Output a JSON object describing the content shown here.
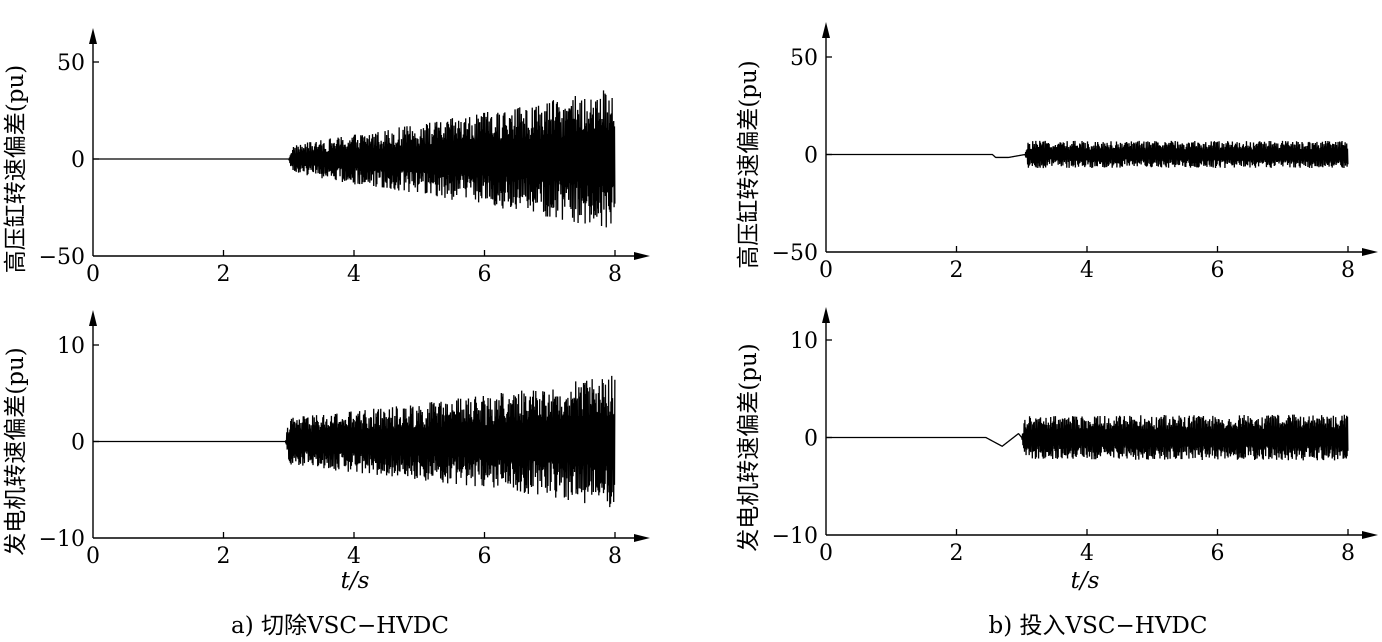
{
  "panels": {
    "a": {
      "caption": "a) 切除VSC−HVDC",
      "xlabel": "t/s"
    },
    "b": {
      "caption": "b) 投入VSC−HVDC",
      "xlabel": "t/s"
    }
  },
  "chart_data": [
    {
      "type": "line",
      "panel": "a",
      "ylabel": "高压缸转速偏差(pu)",
      "xlabel": "t/s",
      "xlim": [
        0,
        8
      ],
      "ylim": [
        -50,
        50
      ],
      "xticks": [
        0,
        2,
        4,
        6,
        8
      ],
      "yticks": [
        -50,
        0,
        50
      ],
      "series": [
        {
          "x": [
            0,
            3.0,
            3.05,
            4,
            5,
            6,
            7,
            8
          ],
          "amplitude": [
            0,
            0,
            7,
            13,
            18,
            24,
            30,
            37
          ],
          "offset": 0
        }
      ]
    },
    {
      "type": "line",
      "panel": "a",
      "ylabel": "发电机转速偏差(pu)",
      "xlabel": "t/s",
      "xlim": [
        0,
        8
      ],
      "ylim": [
        -10,
        10
      ],
      "xticks": [
        0,
        2,
        4,
        6,
        8
      ],
      "yticks": [
        -10,
        0,
        10
      ],
      "series": [
        {
          "x": [
            0,
            2.95,
            3.0,
            4,
            5,
            6,
            7,
            8
          ],
          "amplitude": [
            0,
            0,
            2.5,
            3.2,
            4.0,
            4.8,
            5.8,
            7.0
          ],
          "offset": 0
        }
      ]
    },
    {
      "type": "line",
      "panel": "b",
      "ylabel": "高压缸转速偏差(pu)",
      "xlabel": "t/s",
      "xlim": [
        0,
        8
      ],
      "ylim": [
        -50,
        50
      ],
      "xticks": [
        0,
        2,
        4,
        6,
        8
      ],
      "yticks": [
        -50,
        0,
        50
      ],
      "series": [
        {
          "x": [
            0,
            2.55,
            2.6,
            2.8,
            3.05,
            3.1,
            5,
            8
          ],
          "amplitude": [
            0,
            0,
            0,
            0,
            0,
            7,
            7,
            7
          ],
          "offset": [
            0,
            0,
            -1.5,
            -1.5,
            0,
            0,
            0,
            0
          ]
        }
      ]
    },
    {
      "type": "line",
      "panel": "b",
      "ylabel": "发电机转速偏差(pu)",
      "xlabel": "t/s",
      "xlim": [
        0,
        8
      ],
      "ylim": [
        -10,
        10
      ],
      "xticks": [
        0,
        2,
        4,
        6,
        8
      ],
      "yticks": [
        -10,
        0,
        10
      ],
      "series": [
        {
          "x": [
            0,
            2.45,
            2.7,
            2.95,
            3.0,
            3.05,
            5,
            8
          ],
          "amplitude": [
            0,
            0,
            0,
            0,
            0,
            2.2,
            2.3,
            2.4
          ],
          "offset": [
            0,
            0,
            -0.9,
            0.4,
            0,
            0,
            0,
            0
          ]
        }
      ]
    }
  ]
}
